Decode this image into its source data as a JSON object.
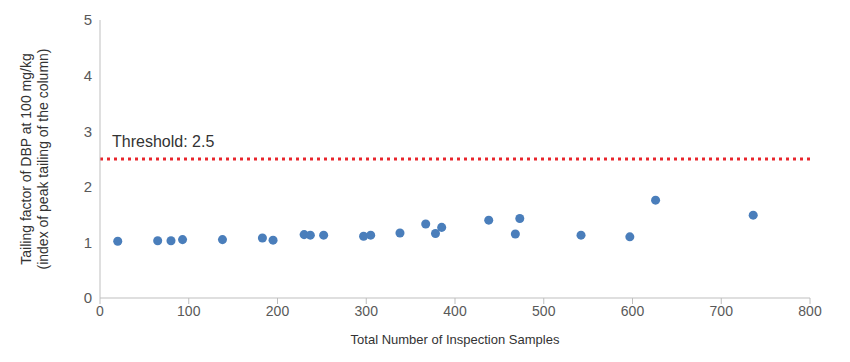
{
  "chart_data": {
    "type": "scatter",
    "title_lines": null,
    "x_label": "Total Number of Inspection Samples",
    "y_label": [
      "Tailing factor of DBP at 100 mg/kg",
      "(index of peak tailing of the column)"
    ],
    "x": [
      20,
      65,
      80,
      93,
      138,
      183,
      195,
      230,
      237,
      252,
      297,
      305,
      338,
      367,
      378,
      385,
      438,
      468,
      473,
      542,
      597,
      626,
      736
    ],
    "values": [
      1.02,
      1.03,
      1.03,
      1.05,
      1.05,
      1.08,
      1.04,
      1.14,
      1.13,
      1.13,
      1.11,
      1.13,
      1.17,
      1.33,
      1.16,
      1.27,
      1.4,
      1.15,
      1.43,
      1.13,
      1.1,
      1.76,
      1.49
    ],
    "color": "#4a7ebb",
    "marker": "circle",
    "xlim": [
      0,
      800
    ],
    "xticks": [
      0,
      100,
      200,
      300,
      400,
      500,
      600,
      700,
      800
    ],
    "ylim": [
      0,
      5
    ],
    "yticks": [
      0,
      1,
      2,
      3,
      4,
      5
    ],
    "grid": false,
    "threshold": {
      "value": 2.5,
      "label": "Threshold: 2.5",
      "color": "#e8262d",
      "line_style": "dotted"
    }
  }
}
